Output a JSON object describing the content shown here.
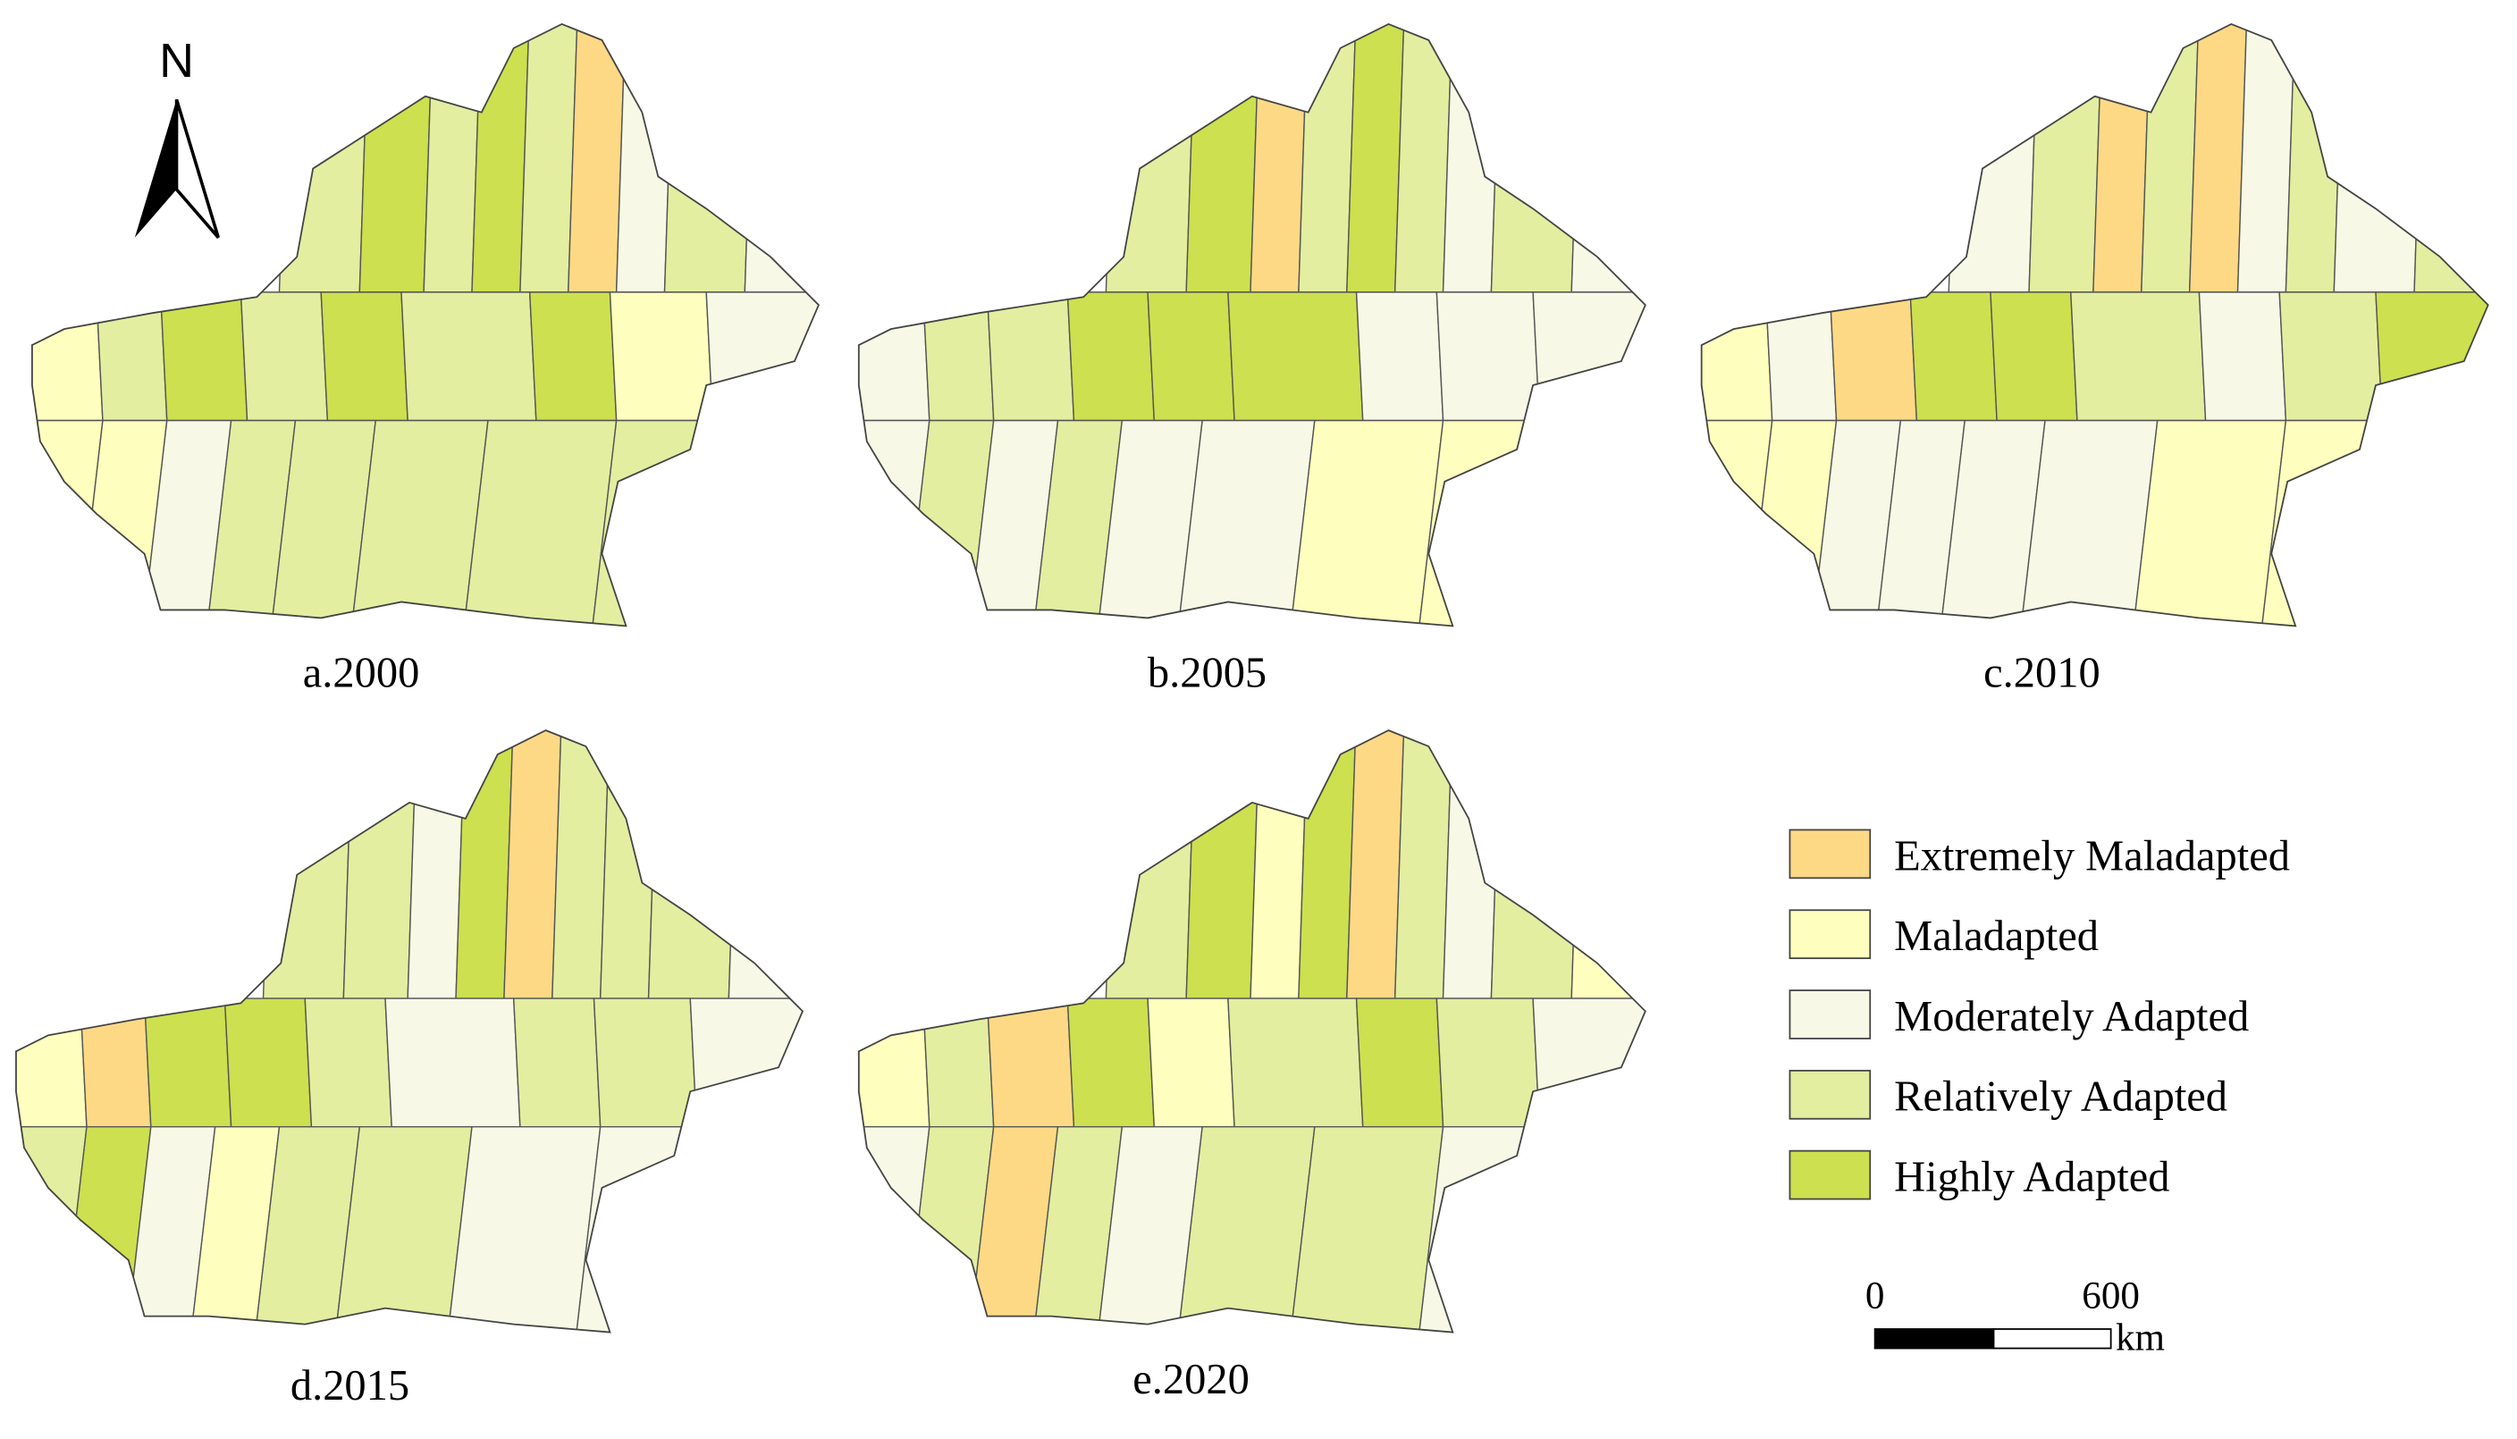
{
  "panels": [
    {
      "label": "a.2000"
    },
    {
      "label": "b.2005"
    },
    {
      "label": "c.2010"
    },
    {
      "label": "d.2015"
    },
    {
      "label": "e.2020"
    }
  ],
  "legend": [
    {
      "label": "Extremely Maladapted",
      "color": "#fdd985"
    },
    {
      "label": "Maladapted",
      "color": "#fefebe"
    },
    {
      "label": "Moderately Adapted",
      "color": "#f7f9e6"
    },
    {
      "label": "Relatively Adapted",
      "color": "#e3eea0"
    },
    {
      "label": "Highly Adapted",
      "color": "#cde04f"
    }
  ],
  "north": "N",
  "scale_bar": {
    "labels": [
      "0",
      "600"
    ],
    "unit": "km"
  }
}
